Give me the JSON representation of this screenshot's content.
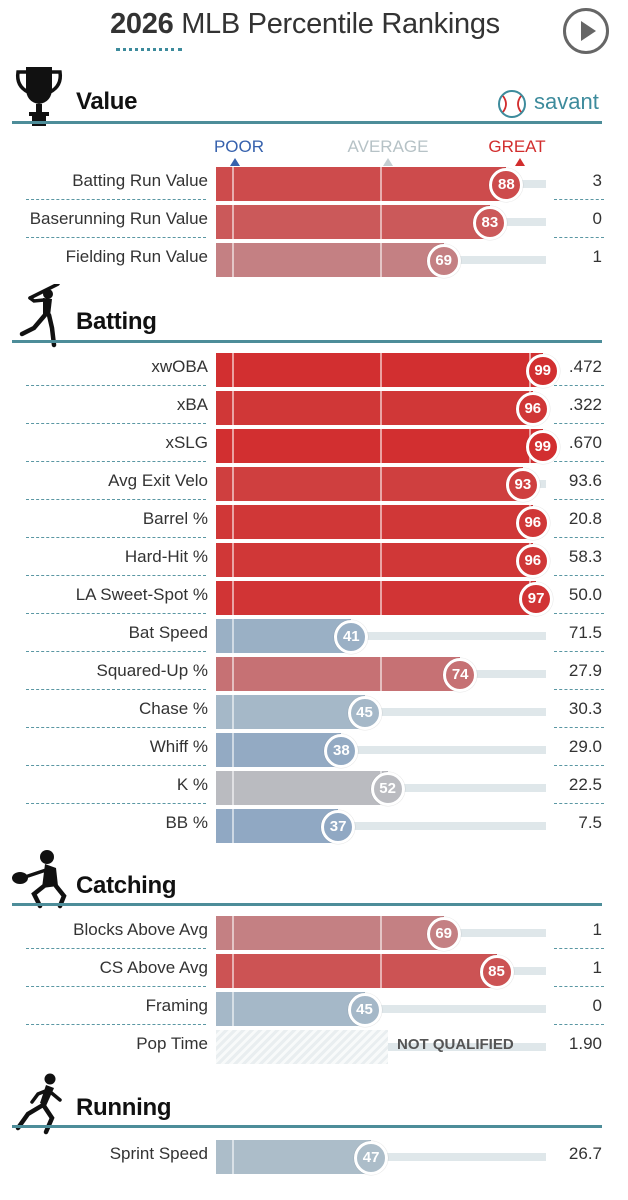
{
  "header": {
    "year": "2026",
    "title_rest": "MLB Percentile Rankings"
  },
  "logo": {
    "text": "savant"
  },
  "scale": {
    "poor": "POOR",
    "average": "AVERAGE",
    "great": "GREAT"
  },
  "colors": {
    "great": "#d22d2d",
    "poor": "#3661ad",
    "average": "#b8c7cc",
    "rule": "#4d8d99"
  },
  "sections": [
    {
      "key": "value",
      "title": "Value",
      "icon": "trophy-icon"
    },
    {
      "key": "batting",
      "title": "Batting",
      "icon": "batter-icon"
    },
    {
      "key": "catching",
      "title": "Catching",
      "icon": "catcher-icon"
    },
    {
      "key": "running",
      "title": "Running",
      "icon": "runner-icon"
    }
  ],
  "chart_data": {
    "type": "bar",
    "title": "2026 MLB Percentile Rankings",
    "xlim": [
      0,
      100
    ],
    "metrics": [
      {
        "section": "Value",
        "label": "Batting Run Value",
        "percentile": 88,
        "value": "3"
      },
      {
        "section": "Value",
        "label": "Baserunning Run Value",
        "percentile": 83,
        "value": "0"
      },
      {
        "section": "Value",
        "label": "Fielding Run Value",
        "percentile": 69,
        "value": "1"
      },
      {
        "section": "Batting",
        "label": "xwOBA",
        "percentile": 99,
        "value": ".472"
      },
      {
        "section": "Batting",
        "label": "xBA",
        "percentile": 96,
        "value": ".322"
      },
      {
        "section": "Batting",
        "label": "xSLG",
        "percentile": 99,
        "value": ".670"
      },
      {
        "section": "Batting",
        "label": "Avg Exit Velo",
        "percentile": 93,
        "value": "93.6"
      },
      {
        "section": "Batting",
        "label": "Barrel %",
        "percentile": 96,
        "value": "20.8"
      },
      {
        "section": "Batting",
        "label": "Hard-Hit %",
        "percentile": 96,
        "value": "58.3"
      },
      {
        "section": "Batting",
        "label": "LA Sweet-Spot %",
        "percentile": 97,
        "value": "50.0"
      },
      {
        "section": "Batting",
        "label": "Bat Speed",
        "percentile": 41,
        "value": "71.5"
      },
      {
        "section": "Batting",
        "label": "Squared-Up %",
        "percentile": 74,
        "value": "27.9"
      },
      {
        "section": "Batting",
        "label": "Chase %",
        "percentile": 45,
        "value": "30.3"
      },
      {
        "section": "Batting",
        "label": "Whiff %",
        "percentile": 38,
        "value": "29.0"
      },
      {
        "section": "Batting",
        "label": "K %",
        "percentile": 52,
        "value": "22.5"
      },
      {
        "section": "Batting",
        "label": "BB %",
        "percentile": 37,
        "value": "7.5"
      },
      {
        "section": "Catching",
        "label": "Blocks Above Avg",
        "percentile": 69,
        "value": "1"
      },
      {
        "section": "Catching",
        "label": "CS Above Avg",
        "percentile": 85,
        "value": "1"
      },
      {
        "section": "Catching",
        "label": "Framing",
        "percentile": 45,
        "value": "0"
      },
      {
        "section": "Catching",
        "label": "Pop Time",
        "percentile": null,
        "value": "1.90",
        "status": "NOT QUALIFIED"
      },
      {
        "section": "Running",
        "label": "Sprint Speed",
        "percentile": 47,
        "value": "26.7"
      }
    ]
  }
}
